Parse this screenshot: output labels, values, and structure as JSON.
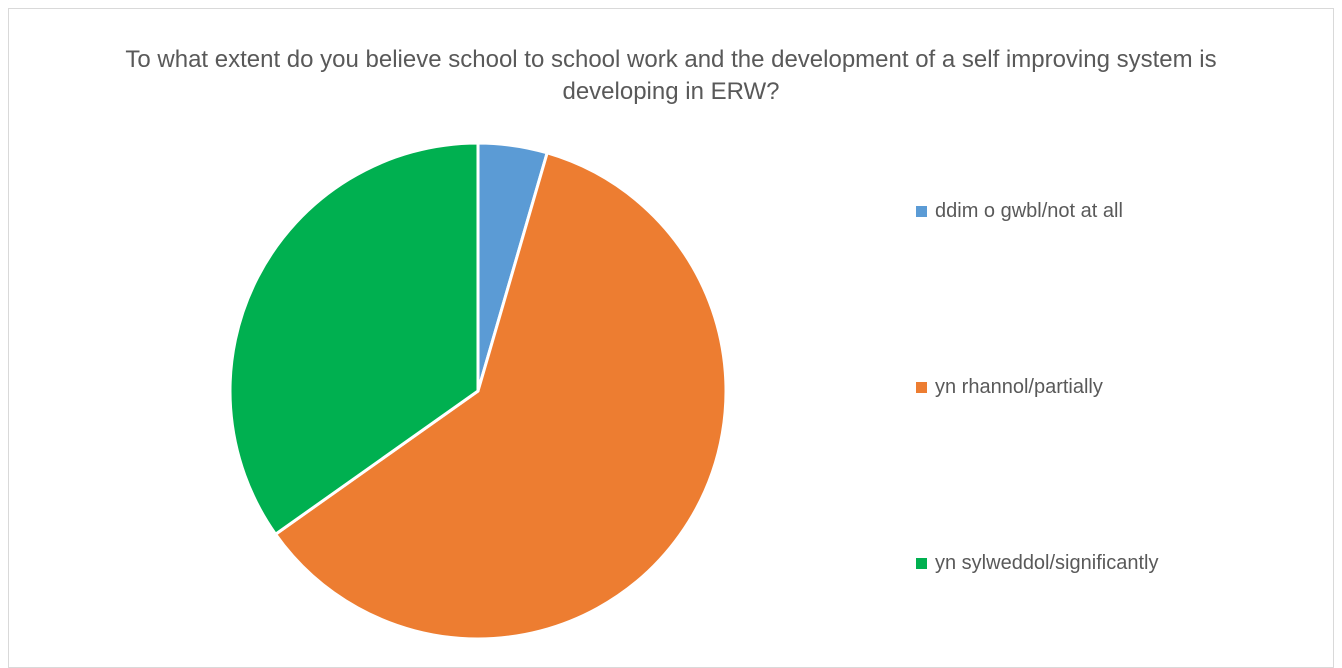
{
  "chart_data": {
    "type": "pie",
    "title": "To what extent do you believe school to school work and the development of a self improving system is developing in ERW?",
    "categories": [
      "ddim o gwbl/not at all",
      "yn rhannol/partially",
      "yn sylweddol/significantly"
    ],
    "values": [
      4.5,
      60.7,
      34.8
    ],
    "unit": "%",
    "colors": [
      "#5b9bd5",
      "#ed7d31",
      "#00b050"
    ],
    "start_angle_deg": 0,
    "direction": "clockwise",
    "legend_position": "right"
  }
}
